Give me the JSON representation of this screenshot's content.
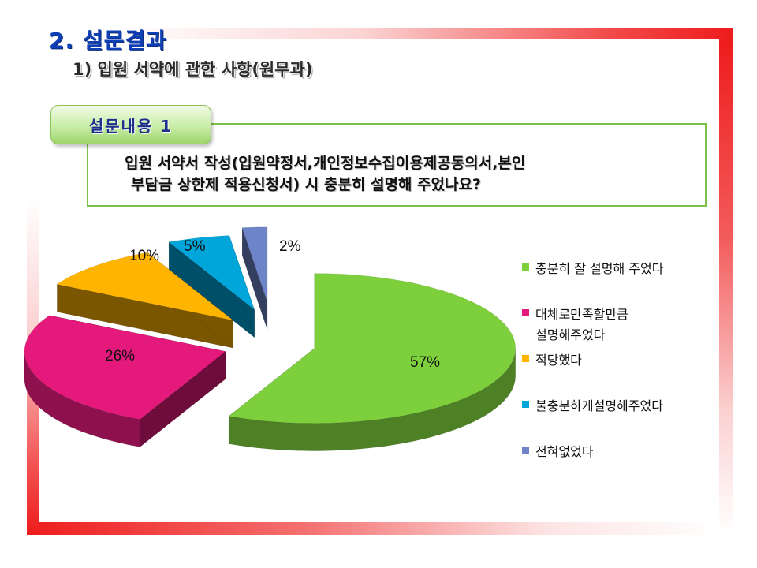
{
  "page": {
    "title": "2. 설문결과",
    "subtitle": "1) 입원 서약에 관한 사항(원무과)"
  },
  "question": {
    "tab_label": "설문내용  1",
    "line1": "입원  서약서  작성(입원약정서,개인정보수집이용제공동의서,본인",
    "line2": "부담금 상한제 적용신청서) 시 충분히 설명해 주었나요?"
  },
  "colors": {
    "frame": "#ee1c1c",
    "title": "#0f3fb5",
    "tab_green": "#9ed56b"
  },
  "chart_data": {
    "type": "pie",
    "title": "",
    "categories": [
      "충분히 잘 설명해 주었다",
      "대체로만족할만큼 설명해주었다",
      "적당했다",
      "불충분하게설명해주었다",
      "전혀없었다"
    ],
    "values": [
      57,
      26,
      10,
      5,
      2
    ],
    "labels": [
      "57%",
      "26%",
      "10%",
      "5%",
      "2%"
    ],
    "colors": [
      "#7dcf3c",
      "#e5197b",
      "#ffb400",
      "#00a5d9",
      "#6d84c8"
    ],
    "legend_position": "right",
    "exploded": true,
    "three_d": true
  },
  "legend": {
    "items": [
      {
        "line1": "충분히 잘 설명해 주었다",
        "line2": ""
      },
      {
        "line1": "대체로만족할만큼",
        "line2": "설명해주었다"
      },
      {
        "line1": "적당했다",
        "line2": ""
      },
      {
        "line1": "불충분하게설명해주었다",
        "line2": ""
      },
      {
        "line1": "전혀없었다",
        "line2": ""
      }
    ]
  }
}
